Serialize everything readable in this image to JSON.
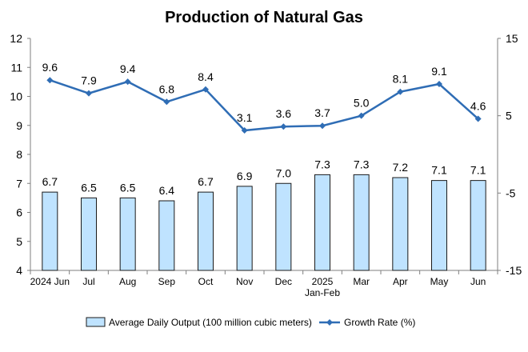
{
  "chart_data": {
    "type": "bar+line",
    "title": "Production of Natural Gas",
    "categories": [
      {
        "line1": "2024 Jun",
        "line2": ""
      },
      {
        "line1": "Jul",
        "line2": ""
      },
      {
        "line1": "Aug",
        "line2": ""
      },
      {
        "line1": "Sep",
        "line2": ""
      },
      {
        "line1": "Oct",
        "line2": ""
      },
      {
        "line1": "Nov",
        "line2": ""
      },
      {
        "line1": "Dec",
        "line2": ""
      },
      {
        "line1": "2025",
        "line2": "Jan-Feb"
      },
      {
        "line1": "Mar",
        "line2": ""
      },
      {
        "line1": "Apr",
        "line2": ""
      },
      {
        "line1": "May",
        "line2": ""
      },
      {
        "line1": "Jun",
        "line2": ""
      }
    ],
    "series": [
      {
        "name": "Average Daily Output (100 million cubic meters)",
        "type": "bar",
        "axis": "left",
        "color": "#bfe3ff",
        "values": [
          6.7,
          6.5,
          6.5,
          6.4,
          6.7,
          6.9,
          7.0,
          7.3,
          7.3,
          7.2,
          7.1,
          7.1
        ]
      },
      {
        "name": "Growth Rate (%)",
        "type": "line",
        "axis": "right",
        "color": "#2f6db5",
        "values": [
          9.6,
          7.9,
          9.4,
          6.8,
          8.4,
          3.1,
          3.6,
          3.7,
          5.0,
          8.1,
          9.1,
          4.6
        ]
      }
    ],
    "left_axis": {
      "min": 4,
      "max": 12,
      "ticks": [
        4,
        5,
        6,
        7,
        8,
        9,
        10,
        11,
        12
      ]
    },
    "right_axis": {
      "min": -15,
      "max": 15,
      "ticks": [
        -15,
        -5,
        5,
        15
      ]
    },
    "legend_position": "bottom",
    "grid": false
  }
}
